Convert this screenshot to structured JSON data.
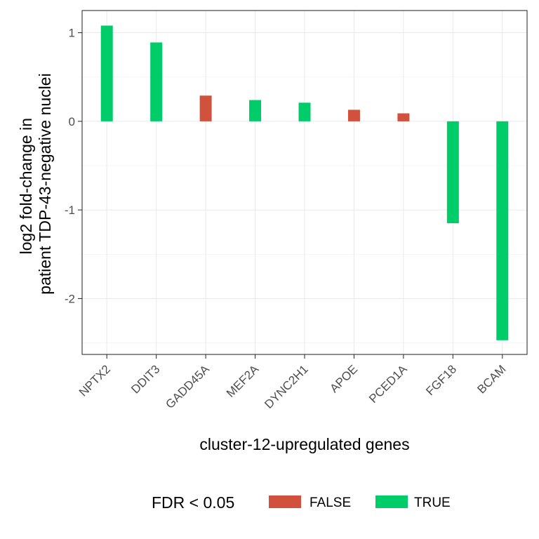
{
  "chart_data": {
    "type": "bar",
    "categories": [
      "NPTX2",
      "DDIT3",
      "GADD45A",
      "MEF2A",
      "DYNC2H1",
      "APOE",
      "PCED1A",
      "FGF18",
      "BCAM"
    ],
    "values": [
      1.08,
      0.89,
      0.29,
      0.24,
      0.21,
      0.13,
      0.09,
      -1.15,
      -2.47
    ],
    "significant": [
      "TRUE",
      "TRUE",
      "FALSE",
      "TRUE",
      "TRUE",
      "FALSE",
      "FALSE",
      "TRUE",
      "TRUE"
    ],
    "xlabel": "cluster-12-upregulated genes",
    "ylabel_lines": [
      "log2 fold-change in",
      "patient TDP-43-negative nuclei"
    ],
    "ylim": [
      -2.63,
      1.25
    ],
    "yticks": [
      1,
      0,
      -1,
      -2
    ],
    "ytick_labels": [
      "1",
      "0",
      "-1",
      "-2"
    ],
    "grid": true,
    "legend": {
      "title": "FDR < 0.05",
      "position": "bottom",
      "entries": [
        {
          "label": "FALSE",
          "color": "#D2513C"
        },
        {
          "label": "TRUE",
          "color": "#00CC6A"
        }
      ]
    },
    "colors": {
      "FALSE": "#D2513C",
      "TRUE": "#00CC6A"
    }
  }
}
